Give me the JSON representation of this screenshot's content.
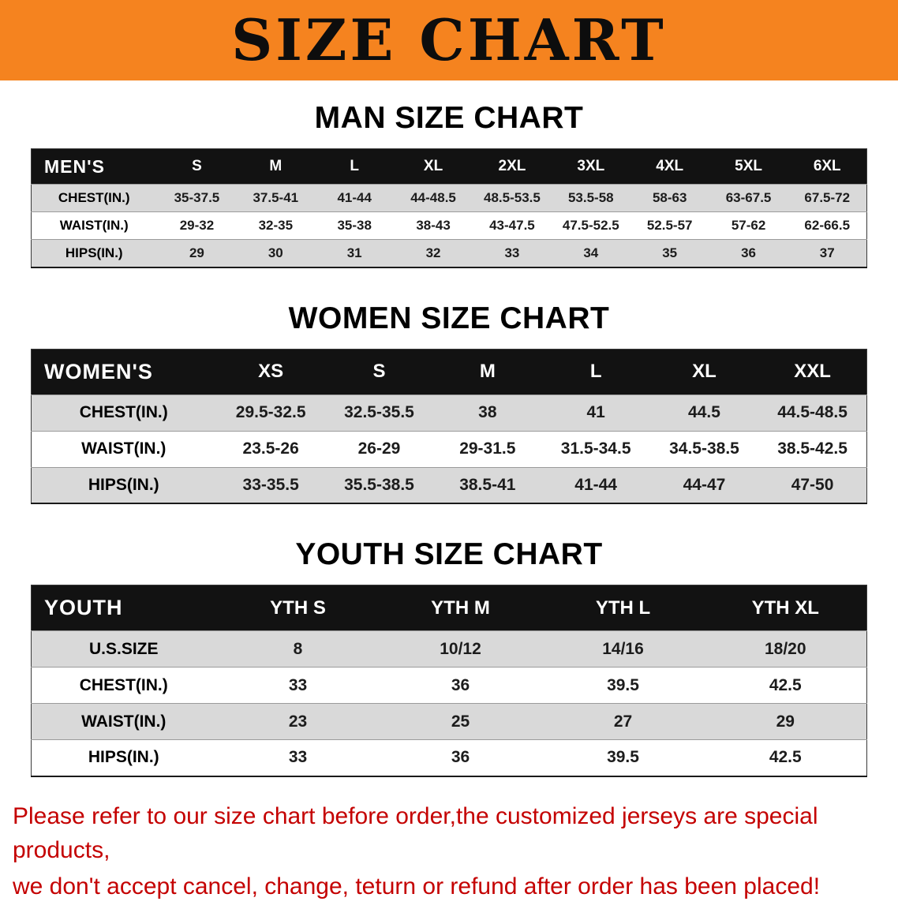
{
  "banner": {
    "title": "SIZE CHART"
  },
  "colors": {
    "banner_orange": "#F5831F",
    "header_black": "#121212",
    "row_gray": "#D9D9D9",
    "disclaimer_red": "#C40000",
    "text_black": "#0D0D0D"
  },
  "sections": [
    {
      "heading": "MAN SIZE CHART",
      "header": {
        "label": "MEN'S",
        "columns": [
          "S",
          "M",
          "L",
          "XL",
          "2XL",
          "3XL",
          "4XL",
          "5XL",
          "6XL"
        ]
      },
      "rows": [
        {
          "label": "CHEST(IN.)",
          "values": [
            "35-37.5",
            "37.5-41",
            "41-44",
            "44-48.5",
            "48.5-53.5",
            "53.5-58",
            "58-63",
            "63-67.5",
            "67.5-72"
          ]
        },
        {
          "label": "WAIST(IN.)",
          "values": [
            "29-32",
            "32-35",
            "35-38",
            "38-43",
            "43-47.5",
            "47.5-52.5",
            "52.5-57",
            "57-62",
            "62-66.5"
          ]
        },
        {
          "label": "HIPS(IN.)",
          "values": [
            "29",
            "30",
            "31",
            "32",
            "33",
            "34",
            "35",
            "36",
            "37"
          ]
        }
      ]
    },
    {
      "heading": "WOMEN SIZE CHART",
      "header": {
        "label": "WOMEN'S",
        "columns": [
          "XS",
          "S",
          "M",
          "L",
          "XL",
          "XXL"
        ]
      },
      "rows": [
        {
          "label": "CHEST(IN.)",
          "values": [
            "29.5-32.5",
            "32.5-35.5",
            "38",
            "41",
            "44.5",
            "44.5-48.5"
          ]
        },
        {
          "label": "WAIST(IN.)",
          "values": [
            "23.5-26",
            "26-29",
            "29-31.5",
            "31.5-34.5",
            "34.5-38.5",
            "38.5-42.5"
          ]
        },
        {
          "label": "HIPS(IN.)",
          "values": [
            "33-35.5",
            "35.5-38.5",
            "38.5-41",
            "41-44",
            "44-47",
            "47-50"
          ]
        }
      ]
    },
    {
      "heading": "YOUTH SIZE CHART",
      "header": {
        "label": "YOUTH",
        "columns": [
          "YTH S",
          "YTH M",
          "YTH L",
          "YTH XL"
        ]
      },
      "rows": [
        {
          "label": "U.S.SIZE",
          "values": [
            "8",
            "10/12",
            "14/16",
            "18/20"
          ]
        },
        {
          "label": "CHEST(IN.)",
          "values": [
            "33",
            "36",
            "39.5",
            "42.5"
          ]
        },
        {
          "label": "WAIST(IN.)",
          "values": [
            "23",
            "25",
            "27",
            "29"
          ]
        },
        {
          "label": "HIPS(IN.)",
          "values": [
            "33",
            "36",
            "39.5",
            "42.5"
          ]
        }
      ]
    }
  ],
  "disclaimer": {
    "line1": "Please refer to our size chart before order,the customized jerseys are special products,",
    "line2": "we don't accept cancel, change, teturn or refund after order has been placed!"
  }
}
